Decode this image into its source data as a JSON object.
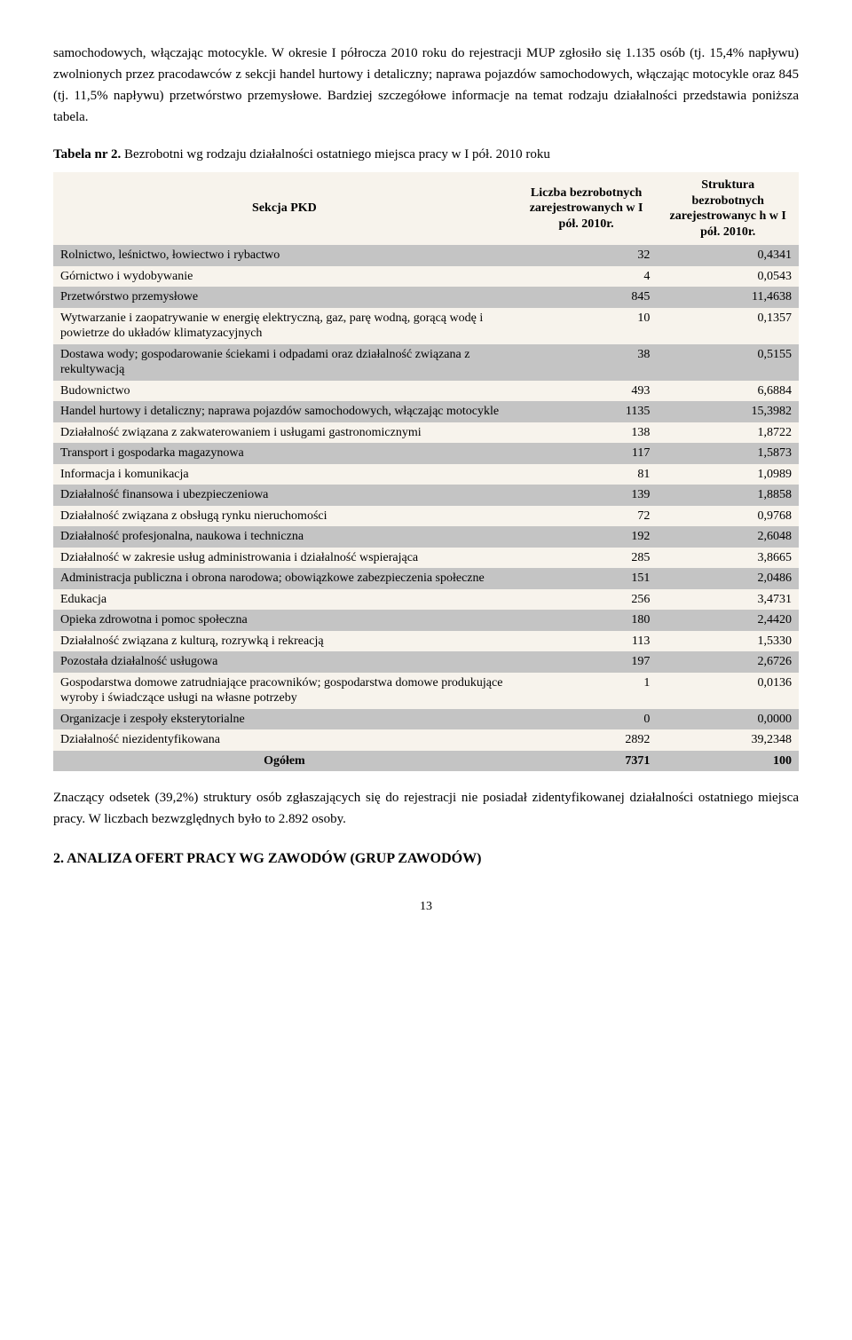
{
  "paragraphs": {
    "p1": "samochodowych, włączając motocykle. W okresie I półrocza 2010 roku do rejestracji MUP zgłosiło się 1.135 osób (tj. 15,4% napływu) zwolnionych przez pracodawców z sekcji handel hurtowy i detaliczny; naprawa pojazdów samochodowych, włączając motocykle oraz 845 (tj. 11,5% napływu) przetwórstwo przemysłowe. Bardziej szczegółowe informacje na temat rodzaju działalności przedstawia poniższa tabela.",
    "table_caption_prefix": "Tabela nr 2.",
    "table_caption_rest": " Bezrobotni wg rodzaju działalności ostatniego miejsca pracy w I pół. 2010 roku",
    "p2": "Znaczący odsetek (39,2%) struktury osób zgłaszających się do rejestracji nie posiadał zidentyfikowanej działalności ostatniego miejsca pracy. W liczbach bezwzględnych było to 2.892 osoby."
  },
  "table": {
    "headers": {
      "col1": "Sekcja PKD",
      "col2": "Liczba bezrobotnych zarejestrowanych w I pół. 2010r.",
      "col3": "Struktura bezrobotnych zarejestrowanyc h w I pół. 2010r."
    },
    "rows": [
      {
        "name": "Rolnictwo, leśnictwo, łowiectwo i rybactwo",
        "v1": "32",
        "v2": "0,4341"
      },
      {
        "name": "Górnictwo i wydobywanie",
        "v1": "4",
        "v2": "0,0543"
      },
      {
        "name": "Przetwórstwo przemysłowe",
        "v1": "845",
        "v2": "11,4638"
      },
      {
        "name": "Wytwarzanie i zaopatrywanie w energię elektryczną, gaz, parę wodną, gorącą wodę i powietrze do układów klimatyzacyjnych",
        "v1": "10",
        "v2": "0,1357"
      },
      {
        "name": "Dostawa wody; gospodarowanie ściekami i odpadami oraz działalność związana z rekultywacją",
        "v1": "38",
        "v2": "0,5155"
      },
      {
        "name": "Budownictwo",
        "v1": "493",
        "v2": "6,6884"
      },
      {
        "name": "Handel hurtowy i detaliczny; naprawa pojazdów samochodowych, włączając motocykle",
        "v1": "1135",
        "v2": "15,3982"
      },
      {
        "name": "Działalność związana z zakwaterowaniem i usługami gastronomicznymi",
        "v1": "138",
        "v2": "1,8722"
      },
      {
        "name": "Transport i gospodarka magazynowa",
        "v1": "117",
        "v2": "1,5873"
      },
      {
        "name": "Informacja i komunikacja",
        "v1": "81",
        "v2": "1,0989"
      },
      {
        "name": "Działalność finansowa i ubezpieczeniowa",
        "v1": "139",
        "v2": "1,8858"
      },
      {
        "name": "Działalność związana z obsługą rynku nieruchomości",
        "v1": "72",
        "v2": "0,9768"
      },
      {
        "name": "Działalność profesjonalna, naukowa i techniczna",
        "v1": "192",
        "v2": "2,6048"
      },
      {
        "name": "Działalność w zakresie usług administrowania i działalność wspierająca",
        "v1": "285",
        "v2": "3,8665"
      },
      {
        "name": "Administracja publiczna i obrona narodowa; obowiązkowe zabezpieczenia społeczne",
        "v1": "151",
        "v2": "2,0486"
      },
      {
        "name": "Edukacja",
        "v1": "256",
        "v2": "3,4731"
      },
      {
        "name": "Opieka zdrowotna i pomoc społeczna",
        "v1": "180",
        "v2": "2,4420"
      },
      {
        "name": "Działalność związana z kulturą, rozrywką i rekreacją",
        "v1": "113",
        "v2": "1,5330"
      },
      {
        "name": "Pozostała działalność usługowa",
        "v1": "197",
        "v2": "2,6726"
      },
      {
        "name": "Gospodarstwa domowe zatrudniające pracowników; gospodarstwa domowe produkujące wyroby i świadczące usługi na własne potrzeby",
        "v1": "1",
        "v2": "0,0136"
      },
      {
        "name": "Organizacje i zespoły eksterytorialne",
        "v1": "0",
        "v2": "0,0000"
      },
      {
        "name": "Działalność niezidentyfikowana",
        "v1": "2892",
        "v2": "39,2348"
      }
    ],
    "total": {
      "name": "Ogółem",
      "v1": "7371",
      "v2": "100"
    }
  },
  "section_heading": "2. ANALIZA OFERT PRACY WG ZAWODÓW (GRUP ZAWODÓW)",
  "page_number": "13",
  "colors": {
    "row_dark": "#c4c4c4",
    "row_light": "#f7f3ec",
    "text": "#000000",
    "background": "#ffffff"
  }
}
